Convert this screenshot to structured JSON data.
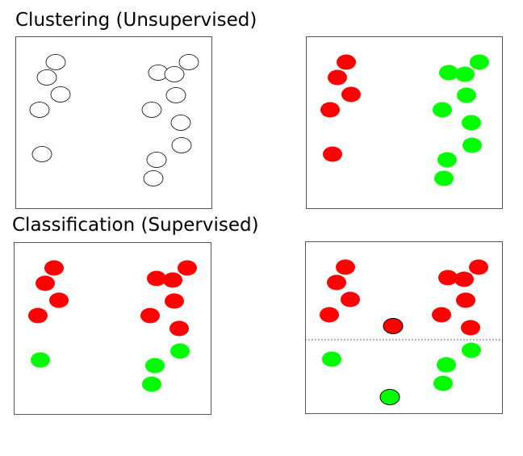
{
  "colors": {
    "red": "#ff0000",
    "green": "#00ff00",
    "outline": "#000000",
    "unlabeled": "#ffffff",
    "frame": "#555555"
  },
  "sections": {
    "clustering": {
      "title": "Clustering (Unsupervised)"
    },
    "classification": {
      "title": "Classification (Supervised)"
    }
  },
  "panels": [
    {
      "id": "clustering-input",
      "points": [
        {
          "c": "unlabeled"
        },
        {
          "c": "unlabeled"
        },
        {
          "c": "unlabeled"
        },
        {
          "c": "unlabeled"
        },
        {
          "c": "unlabeled"
        },
        {
          "c": "unlabeled"
        },
        {
          "c": "unlabeled"
        },
        {
          "c": "unlabeled"
        },
        {
          "c": "unlabeled"
        },
        {
          "c": "unlabeled"
        },
        {
          "c": "unlabeled"
        },
        {
          "c": "unlabeled"
        },
        {
          "c": "unlabeled"
        },
        {
          "c": "unlabeled"
        }
      ]
    },
    {
      "id": "clustering-result",
      "points": [
        {
          "c": "red"
        },
        {
          "c": "red"
        },
        {
          "c": "red"
        },
        {
          "c": "red"
        },
        {
          "c": "red"
        },
        {
          "c": "green"
        },
        {
          "c": "green"
        },
        {
          "c": "green"
        },
        {
          "c": "green"
        },
        {
          "c": "green"
        },
        {
          "c": "green"
        },
        {
          "c": "green"
        },
        {
          "c": "green"
        },
        {
          "c": "green"
        }
      ]
    },
    {
      "id": "classification-training",
      "points": [
        {
          "c": "red"
        },
        {
          "c": "red"
        },
        {
          "c": "red"
        },
        {
          "c": "red"
        },
        {
          "c": "green"
        },
        {
          "c": "red"
        },
        {
          "c": "red"
        },
        {
          "c": "red"
        },
        {
          "c": "red"
        },
        {
          "c": "red"
        },
        {
          "c": "red"
        },
        {
          "c": "green"
        },
        {
          "c": "green"
        },
        {
          "c": "green"
        }
      ]
    },
    {
      "id": "classification-prediction",
      "has_boundary": true,
      "points": [
        {
          "c": "red"
        },
        {
          "c": "red"
        },
        {
          "c": "red"
        },
        {
          "c": "red"
        },
        {
          "c": "green"
        },
        {
          "c": "red"
        },
        {
          "c": "red"
        },
        {
          "c": "red"
        },
        {
          "c": "red"
        },
        {
          "c": "red"
        },
        {
          "c": "red"
        },
        {
          "c": "green"
        },
        {
          "c": "green"
        },
        {
          "c": "green"
        },
        {
          "c": "red",
          "new": true
        },
        {
          "c": "green",
          "new": true
        }
      ]
    }
  ]
}
